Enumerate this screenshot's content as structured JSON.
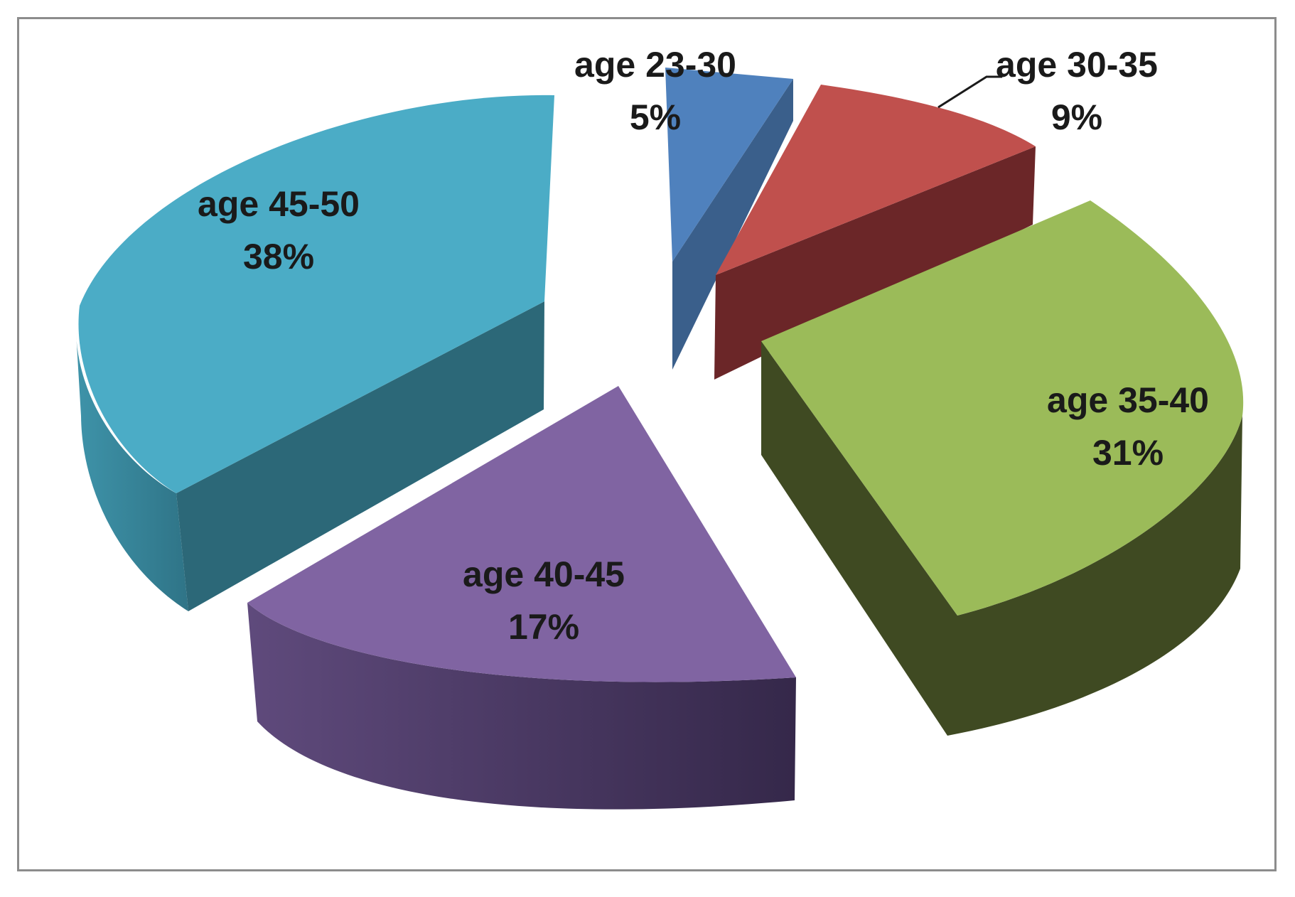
{
  "chart_data": {
    "type": "pie",
    "style": "3d-exploded",
    "slices": [
      {
        "label": "age 23-30",
        "value": 5,
        "percent_label": "5%",
        "color": "#4F81BD",
        "side_color": "#3A5F8B"
      },
      {
        "label": "age 30-35",
        "value": 9,
        "percent_label": "9%",
        "color": "#C0504D",
        "side_color": "#6B2628"
      },
      {
        "label": "age 35-40",
        "value": 31,
        "percent_label": "31%",
        "color": "#9BBB59",
        "side_color": "#3F4A22"
      },
      {
        "label": "age 40-45",
        "value": 17,
        "percent_label": "17%",
        "color": "#8064A2",
        "side_color": "#4A3A62"
      },
      {
        "label": "age 45-50",
        "value": 38,
        "percent_label": "38%",
        "color": "#4BACC6",
        "side_color": "#2C6878"
      }
    ],
    "legend": "none",
    "data_labels": "inside"
  }
}
